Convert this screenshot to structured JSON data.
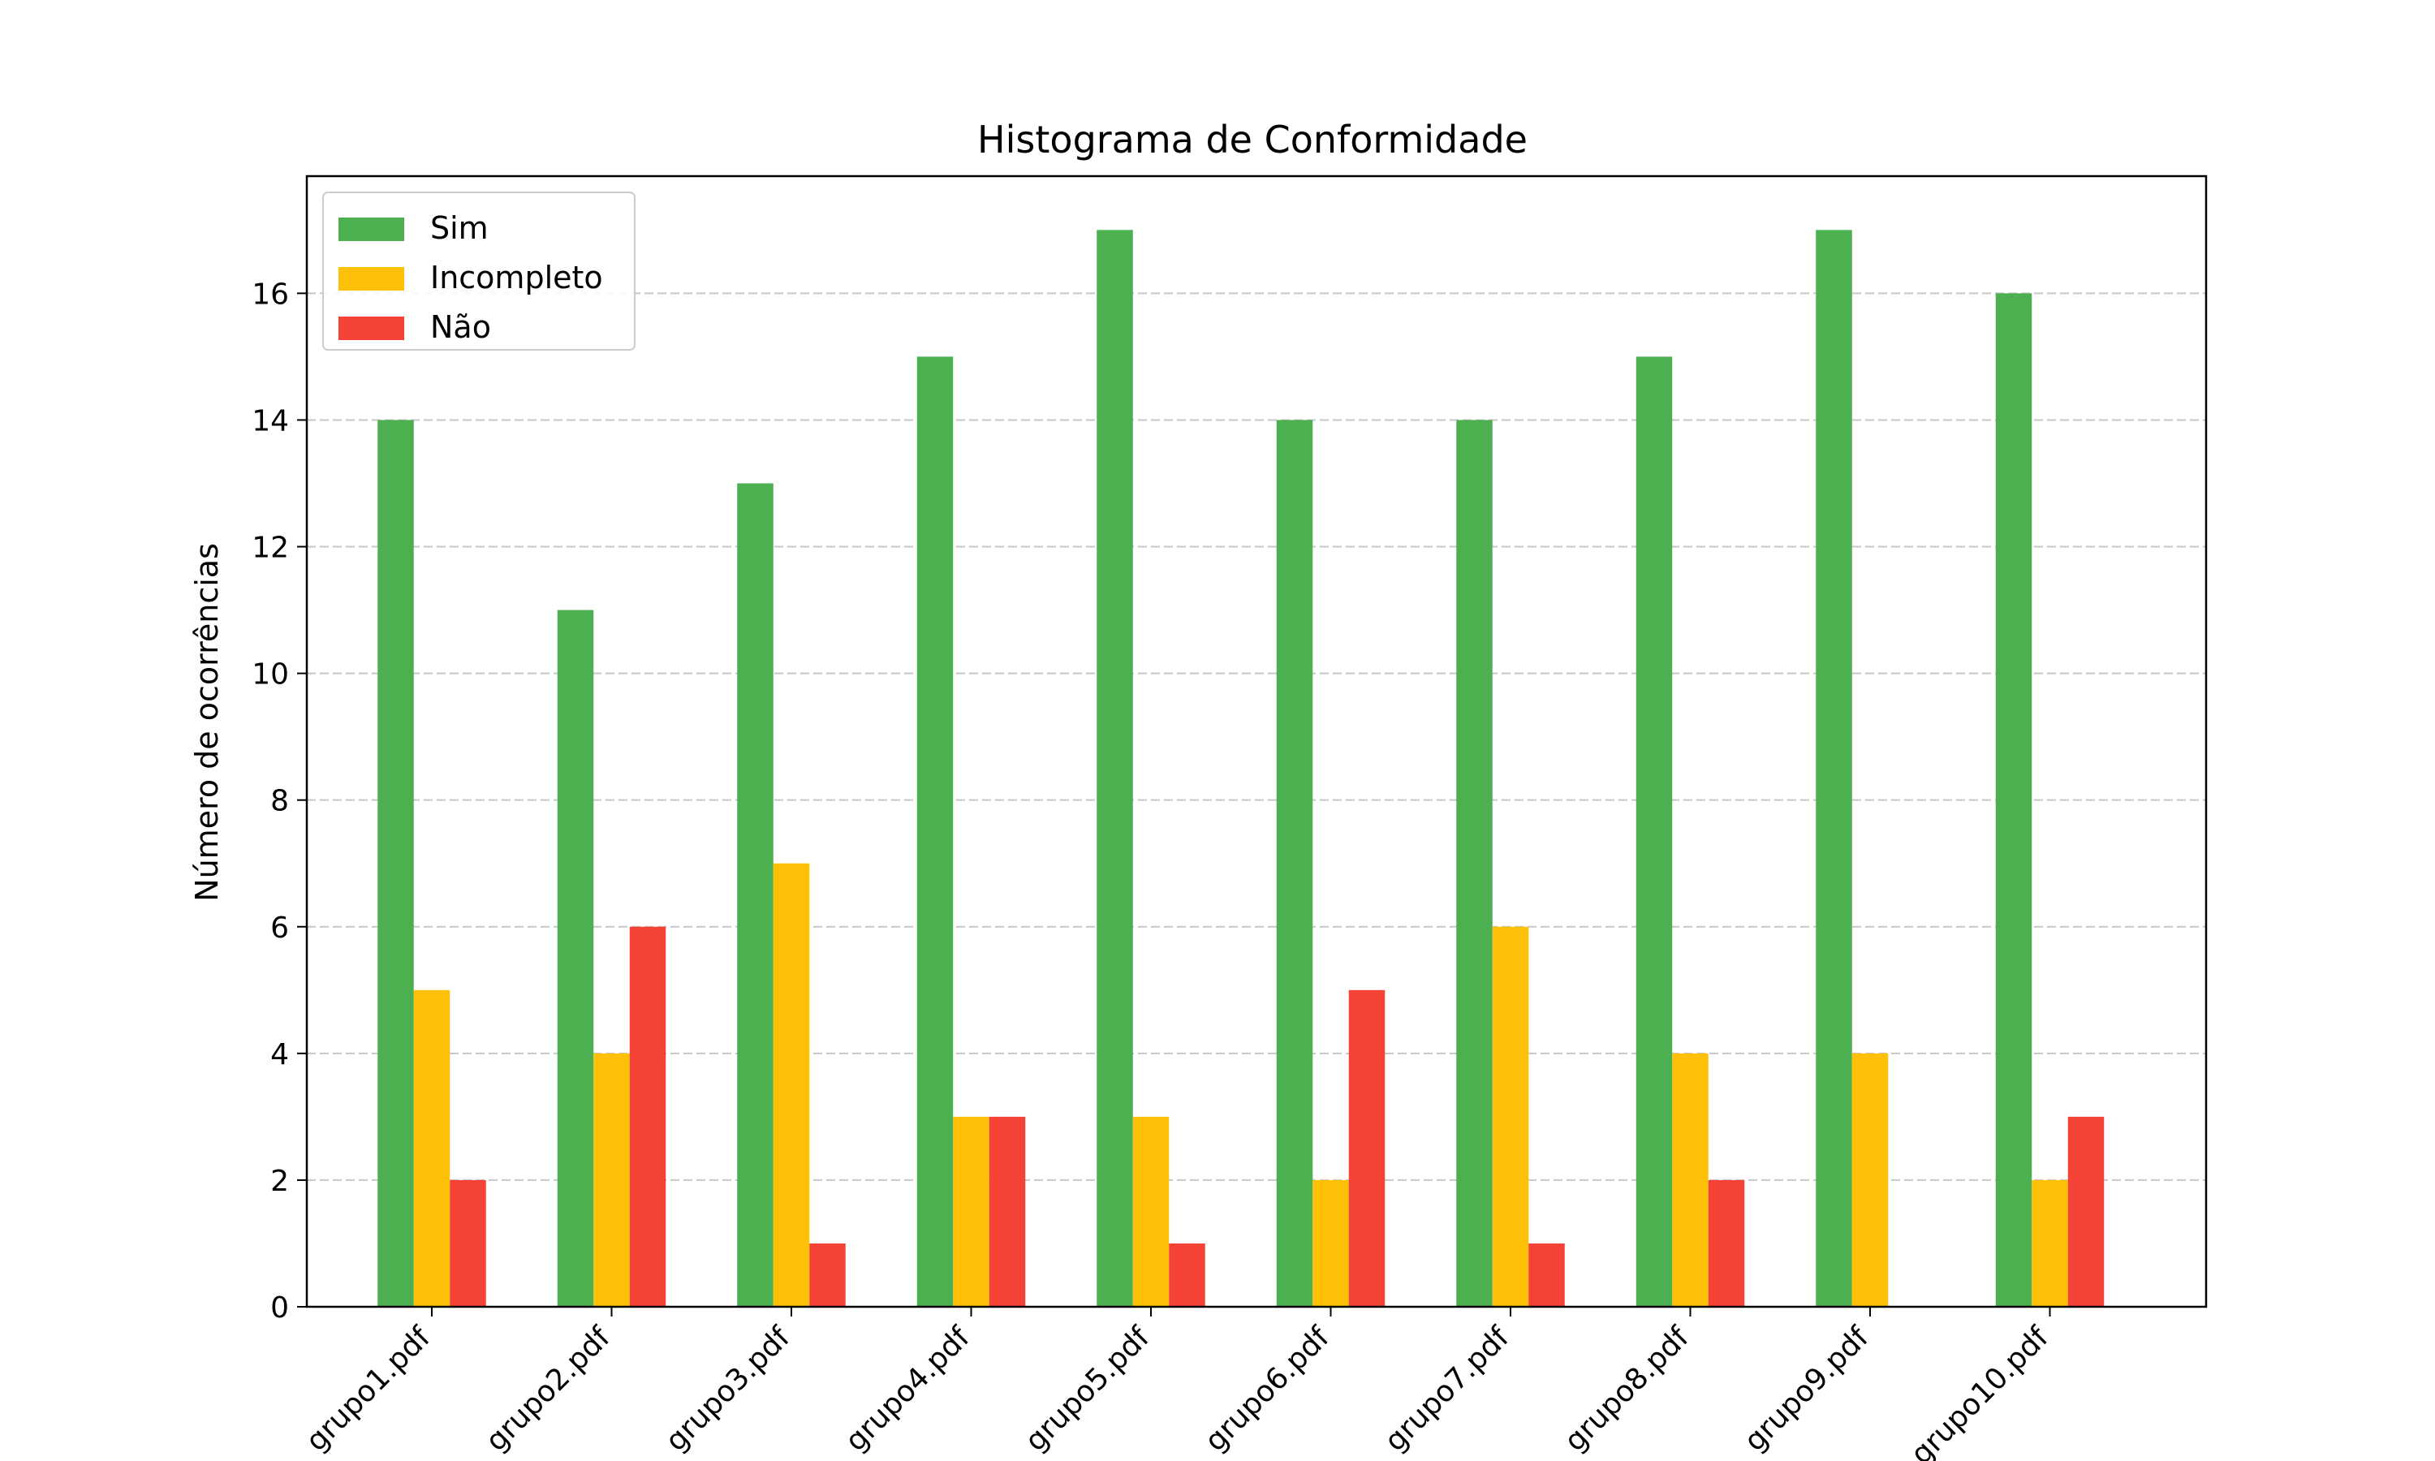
{
  "chart_data": {
    "type": "bar",
    "title": "Histograma de Conformidade",
    "xlabel": "",
    "ylabel": "Número de ocorrências",
    "ylim": [
      0,
      17.85
    ],
    "yticks": [
      0,
      2,
      4,
      6,
      8,
      10,
      12,
      14,
      16
    ],
    "grid": "y-dashed",
    "legend_position": "top-left",
    "categories": [
      "grupo1.pdf",
      "grupo2.pdf",
      "grupo3.pdf",
      "grupo4.pdf",
      "grupo5.pdf",
      "grupo6.pdf",
      "grupo7.pdf",
      "grupo8.pdf",
      "grupo9.pdf",
      "grupo10.pdf"
    ],
    "series": [
      {
        "name": "Sim",
        "color": "#4caf50",
        "values": [
          14,
          11,
          13,
          15,
          17,
          14,
          14,
          15,
          17,
          16
        ]
      },
      {
        "name": "Incompleto",
        "color": "#ffc107",
        "values": [
          5,
          4,
          7,
          3,
          3,
          2,
          6,
          4,
          4,
          2
        ]
      },
      {
        "name": "Não",
        "color": "#f44336",
        "values": [
          2,
          6,
          1,
          3,
          1,
          5,
          1,
          2,
          0,
          3
        ]
      }
    ]
  }
}
